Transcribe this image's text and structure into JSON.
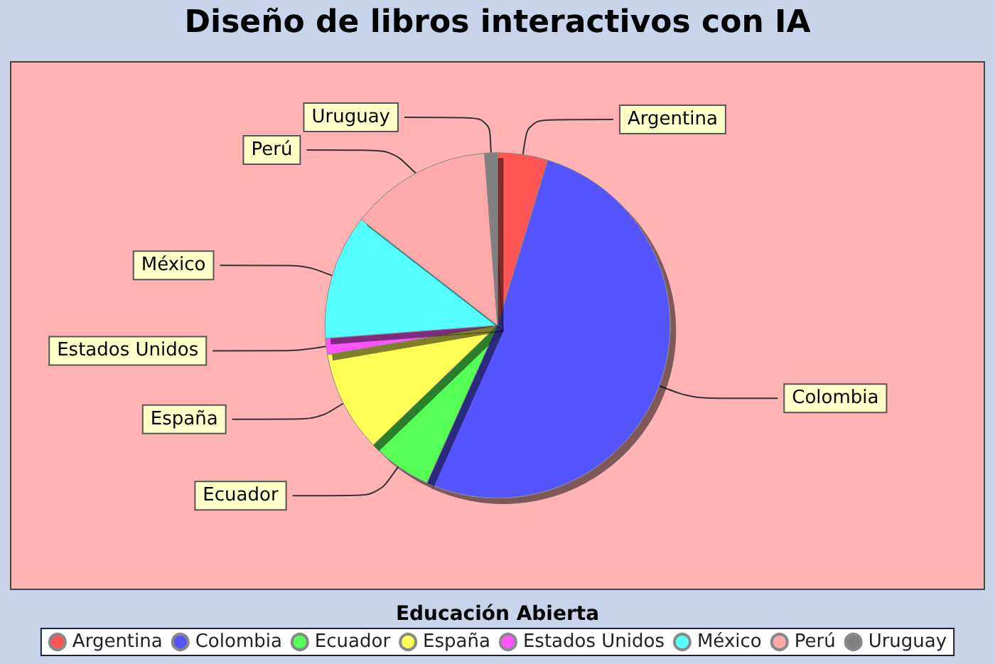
{
  "chart_data": {
    "type": "pie",
    "title": "Diseño de libros interactivos con IA",
    "legend_title": "Educación Abierta",
    "legend": "bottom",
    "categories": [
      "Argentina",
      "Colombia",
      "Ecuador",
      "España",
      "Estados Unidos",
      "México",
      "Perú",
      "Uruguay"
    ],
    "values": [
      4.7,
      52,
      6.1,
      9.5,
      1.5,
      11.7,
      13.3,
      1.2
    ],
    "colors": [
      "#ff5555",
      "#5555ff",
      "#55ff55",
      "#ffff55",
      "#ff55ff",
      "#55ffff",
      "#ffaaaa",
      "#808080"
    ]
  }
}
